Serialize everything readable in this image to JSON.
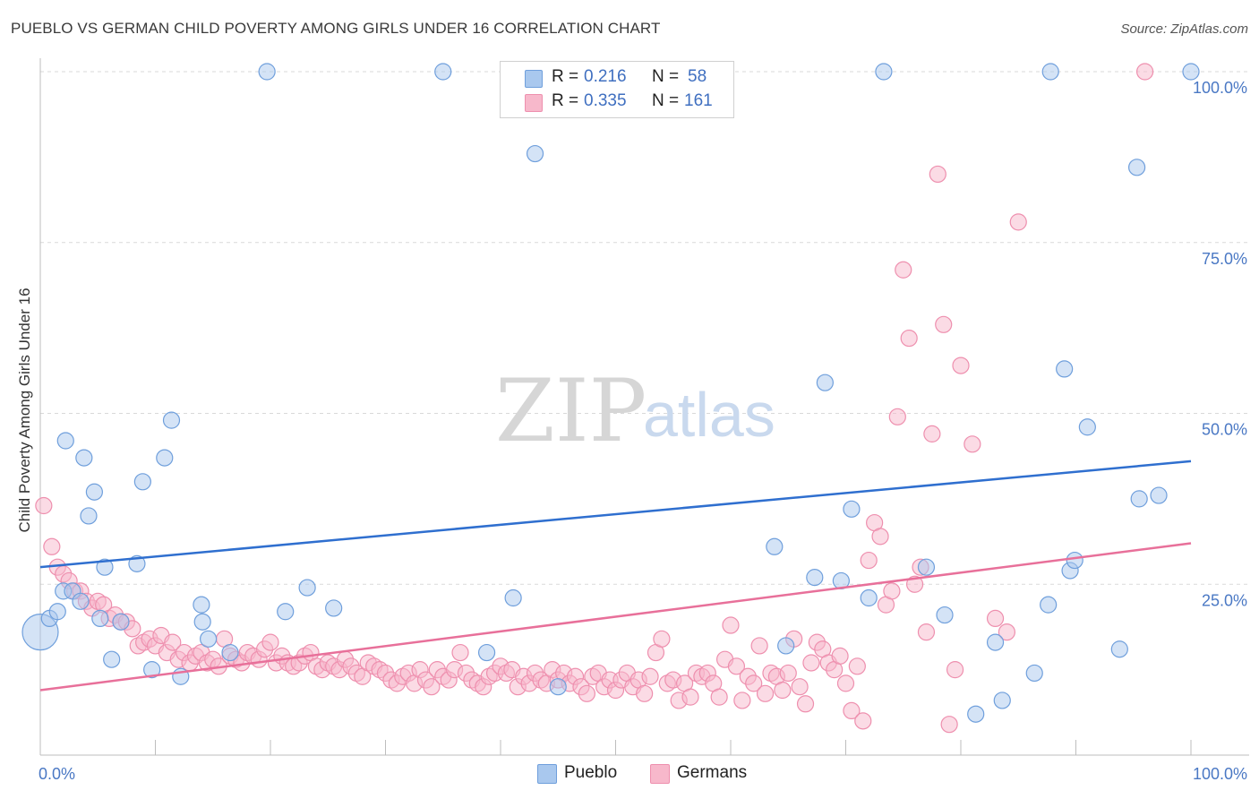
{
  "title": "PUEBLO VS GERMAN CHILD POVERTY AMONG GIRLS UNDER 16 CORRELATION CHART",
  "source": "Source: ZipAtlas.com",
  "watermark": {
    "zip": "ZIP",
    "atlas": "atlas"
  },
  "colors": {
    "pueblo_fill": "#a9c8ee",
    "pueblo_stroke": "#6f9fdc",
    "pueblo_line": "#2f6fcf",
    "germans_fill": "#f7b8cb",
    "germans_stroke": "#ee8fae",
    "germans_line": "#e8709a",
    "tick_text": "#4a78c4"
  },
  "legend_top": {
    "rows": [
      {
        "r_label": "R =",
        "r_value": "0.216",
        "n_label": "N =",
        "n_value": "58",
        "color": "#a9c8ee"
      },
      {
        "r_label": "R =",
        "r_value": "0.335",
        "n_label": "N =",
        "n_value": "161",
        "color": "#f7b8cb"
      }
    ]
  },
  "legend_bottom": [
    {
      "label": "Pueblo",
      "color": "#a9c8ee"
    },
    {
      "label": "Germans",
      "color": "#f7b8cb"
    }
  ],
  "chart_data": {
    "type": "scatter",
    "title": "PUEBLO VS GERMAN CHILD POVERTY AMONG GIRLS UNDER 16 CORRELATION CHART",
    "xlabel": "",
    "ylabel": "Child Poverty Among Girls Under 16",
    "xlim": [
      0,
      100
    ],
    "ylim": [
      0,
      100
    ],
    "x_tick_labels": [
      "0.0%",
      "100.0%"
    ],
    "y_tick_labels": [
      "25.0%",
      "50.0%",
      "75.0%",
      "100.0%"
    ],
    "y_ticks": [
      25,
      50,
      75,
      100
    ],
    "grid": true,
    "legend_position": "top-center",
    "series": [
      {
        "name": "Pueblo",
        "r": 0.216,
        "n": 58,
        "trend": {
          "x": [
            0,
            100
          ],
          "y": [
            27.5,
            43.0
          ]
        },
        "points": [
          [
            0.0,
            18.0
          ],
          [
            0.8,
            20.0
          ],
          [
            1.5,
            21.0
          ],
          [
            2.0,
            24.0
          ],
          [
            2.2,
            46.0
          ],
          [
            2.8,
            24.0
          ],
          [
            3.5,
            22.5
          ],
          [
            3.8,
            43.5
          ],
          [
            4.2,
            35.0
          ],
          [
            4.7,
            38.5
          ],
          [
            5.2,
            20.0
          ],
          [
            5.6,
            27.5
          ],
          [
            6.2,
            14.0
          ],
          [
            7.0,
            19.5
          ],
          [
            8.4,
            28.0
          ],
          [
            8.9,
            40.0
          ],
          [
            9.7,
            12.5
          ],
          [
            10.8,
            43.5
          ],
          [
            11.4,
            49.0
          ],
          [
            12.2,
            11.5
          ],
          [
            14.0,
            22.0
          ],
          [
            14.1,
            19.5
          ],
          [
            14.6,
            17.0
          ],
          [
            16.5,
            15.0
          ],
          [
            19.7,
            100.0
          ],
          [
            21.3,
            21.0
          ],
          [
            23.2,
            24.5
          ],
          [
            25.5,
            21.5
          ],
          [
            35.0,
            100.0
          ],
          [
            38.8,
            15.0
          ],
          [
            41.1,
            23.0
          ],
          [
            43.0,
            88.0
          ],
          [
            45.0,
            10.0
          ],
          [
            63.8,
            30.5
          ],
          [
            64.8,
            16.0
          ],
          [
            67.3,
            26.0
          ],
          [
            68.2,
            54.5
          ],
          [
            69.6,
            25.5
          ],
          [
            70.5,
            36.0
          ],
          [
            72.0,
            23.0
          ],
          [
            73.3,
            100.0
          ],
          [
            77.0,
            27.5
          ],
          [
            78.6,
            20.5
          ],
          [
            81.3,
            6.0
          ],
          [
            83.0,
            16.5
          ],
          [
            83.6,
            8.0
          ],
          [
            86.4,
            12.0
          ],
          [
            87.6,
            22.0
          ],
          [
            87.8,
            100.0
          ],
          [
            89.0,
            56.5
          ],
          [
            89.5,
            27.0
          ],
          [
            89.9,
            28.5
          ],
          [
            91.0,
            48.0
          ],
          [
            93.8,
            15.5
          ],
          [
            95.3,
            86.0
          ],
          [
            95.5,
            37.5
          ],
          [
            97.2,
            38.0
          ],
          [
            100.0,
            100.0
          ]
        ]
      },
      {
        "name": "Germans",
        "r": 0.335,
        "n": 161,
        "trend": {
          "x": [
            0,
            100
          ],
          "y": [
            9.5,
            31.0
          ]
        },
        "points": [
          [
            0.3,
            36.5
          ],
          [
            1.0,
            30.5
          ],
          [
            1.5,
            27.5
          ],
          [
            2.0,
            26.5
          ],
          [
            2.5,
            25.5
          ],
          [
            3.0,
            24.0
          ],
          [
            3.5,
            24.0
          ],
          [
            4.0,
            22.5
          ],
          [
            4.5,
            21.5
          ],
          [
            5.0,
            22.5
          ],
          [
            5.5,
            22.0
          ],
          [
            6.0,
            20.0
          ],
          [
            6.5,
            20.5
          ],
          [
            7.0,
            19.5
          ],
          [
            7.5,
            19.5
          ],
          [
            8.0,
            18.5
          ],
          [
            8.5,
            16.0
          ],
          [
            9.0,
            16.5
          ],
          [
            9.5,
            17.0
          ],
          [
            10.0,
            16.0
          ],
          [
            10.5,
            17.5
          ],
          [
            11.0,
            15.0
          ],
          [
            11.5,
            16.5
          ],
          [
            12.0,
            14.0
          ],
          [
            12.5,
            15.0
          ],
          [
            13.0,
            13.5
          ],
          [
            13.5,
            14.5
          ],
          [
            14.0,
            15.0
          ],
          [
            14.5,
            13.5
          ],
          [
            15.0,
            14.0
          ],
          [
            15.5,
            13.0
          ],
          [
            16.0,
            17.0
          ],
          [
            16.5,
            14.5
          ],
          [
            17.0,
            14.0
          ],
          [
            17.5,
            13.5
          ],
          [
            18.0,
            15.0
          ],
          [
            18.5,
            14.5
          ],
          [
            19.0,
            14.0
          ],
          [
            19.5,
            15.5
          ],
          [
            20.0,
            16.5
          ],
          [
            20.5,
            13.5
          ],
          [
            21.0,
            14.5
          ],
          [
            21.5,
            13.5
          ],
          [
            22.0,
            13.0
          ],
          [
            22.5,
            13.5
          ],
          [
            23.0,
            14.5
          ],
          [
            23.5,
            15.0
          ],
          [
            24.0,
            13.0
          ],
          [
            24.5,
            12.5
          ],
          [
            25.0,
            13.5
          ],
          [
            25.5,
            13.0
          ],
          [
            26.0,
            12.5
          ],
          [
            26.5,
            14.0
          ],
          [
            27.0,
            13.0
          ],
          [
            27.5,
            12.0
          ],
          [
            28.0,
            11.5
          ],
          [
            28.5,
            13.5
          ],
          [
            29.0,
            13.0
          ],
          [
            29.5,
            12.5
          ],
          [
            30.0,
            12.0
          ],
          [
            30.5,
            11.0
          ],
          [
            31.0,
            10.5
          ],
          [
            31.5,
            11.5
          ],
          [
            32.0,
            12.0
          ],
          [
            32.5,
            10.5
          ],
          [
            33.0,
            12.5
          ],
          [
            33.5,
            11.0
          ],
          [
            34.0,
            10.0
          ],
          [
            34.5,
            12.5
          ],
          [
            35.0,
            11.5
          ],
          [
            35.5,
            11.0
          ],
          [
            36.0,
            12.5
          ],
          [
            36.5,
            15.0
          ],
          [
            37.0,
            12.0
          ],
          [
            37.5,
            11.0
          ],
          [
            38.0,
            10.5
          ],
          [
            38.5,
            10.0
          ],
          [
            39.0,
            11.5
          ],
          [
            39.5,
            12.0
          ],
          [
            40.0,
            13.0
          ],
          [
            40.5,
            12.0
          ],
          [
            41.0,
            12.5
          ],
          [
            41.5,
            10.0
          ],
          [
            42.0,
            11.5
          ],
          [
            42.5,
            10.5
          ],
          [
            43.0,
            12.0
          ],
          [
            43.5,
            11.0
          ],
          [
            44.0,
            10.5
          ],
          [
            44.5,
            12.5
          ],
          [
            45.0,
            11.0
          ],
          [
            45.5,
            12.0
          ],
          [
            46.0,
            10.5
          ],
          [
            46.5,
            11.5
          ],
          [
            47.0,
            10.0
          ],
          [
            47.5,
            9.0
          ],
          [
            48.0,
            11.5
          ],
          [
            48.5,
            12.0
          ],
          [
            49.0,
            10.0
          ],
          [
            49.5,
            11.0
          ],
          [
            50.0,
            9.5
          ],
          [
            50.5,
            11.0
          ],
          [
            51.0,
            12.0
          ],
          [
            51.5,
            10.0
          ],
          [
            52.0,
            11.0
          ],
          [
            52.5,
            9.0
          ],
          [
            53.0,
            11.5
          ],
          [
            53.5,
            15.0
          ],
          [
            54.0,
            17.0
          ],
          [
            54.5,
            10.5
          ],
          [
            55.0,
            11.0
          ],
          [
            55.5,
            8.0
          ],
          [
            56.0,
            10.5
          ],
          [
            56.5,
            8.5
          ],
          [
            57.0,
            12.0
          ],
          [
            57.5,
            11.5
          ],
          [
            58.0,
            12.0
          ],
          [
            58.5,
            10.5
          ],
          [
            59.0,
            8.5
          ],
          [
            59.5,
            14.0
          ],
          [
            60.0,
            19.0
          ],
          [
            60.5,
            13.0
          ],
          [
            61.0,
            8.0
          ],
          [
            61.5,
            11.5
          ],
          [
            62.0,
            10.5
          ],
          [
            62.5,
            16.0
          ],
          [
            63.0,
            9.0
          ],
          [
            63.5,
            12.0
          ],
          [
            64.0,
            11.5
          ],
          [
            64.5,
            9.5
          ],
          [
            65.0,
            12.0
          ],
          [
            65.5,
            17.0
          ],
          [
            66.0,
            10.0
          ],
          [
            66.5,
            7.5
          ],
          [
            67.0,
            13.5
          ],
          [
            67.5,
            16.5
          ],
          [
            68.0,
            15.5
          ],
          [
            68.5,
            13.5
          ],
          [
            69.0,
            12.5
          ],
          [
            69.5,
            14.5
          ],
          [
            70.0,
            10.5
          ],
          [
            70.5,
            6.5
          ],
          [
            71.0,
            13.0
          ],
          [
            71.5,
            5.0
          ],
          [
            72.0,
            28.5
          ],
          [
            72.5,
            34.0
          ],
          [
            73.0,
            32.0
          ],
          [
            73.5,
            22.0
          ],
          [
            74.0,
            24.0
          ],
          [
            74.5,
            49.5
          ],
          [
            75.0,
            71.0
          ],
          [
            75.5,
            61.0
          ],
          [
            76.0,
            25.0
          ],
          [
            76.5,
            27.5
          ],
          [
            77.0,
            18.0
          ],
          [
            77.5,
            47.0
          ],
          [
            78.0,
            85.0
          ],
          [
            78.5,
            63.0
          ],
          [
            79.0,
            4.5
          ],
          [
            79.5,
            12.5
          ],
          [
            80.0,
            57.0
          ],
          [
            81.0,
            45.5
          ],
          [
            83.0,
            20.0
          ],
          [
            84.0,
            18.0
          ],
          [
            85.0,
            78.0
          ],
          [
            96.0,
            100.0
          ]
        ]
      }
    ]
  }
}
